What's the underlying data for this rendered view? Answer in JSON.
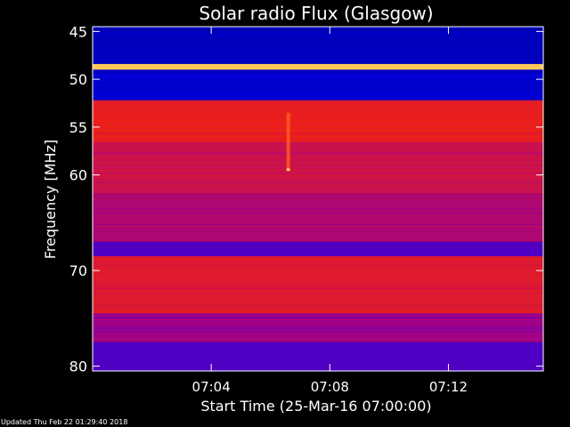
{
  "chart_data": {
    "type": "heatmap",
    "title": "Solar radio Flux (Glasgow)",
    "ylabel": "Frequency [MHz]",
    "xlabel": "Start Time (25-Mar-16 07:00:00)",
    "x_range_minutes": [
      0.0,
      15.2
    ],
    "x_ticks": [
      {
        "minute": 4,
        "label": "07:04"
      },
      {
        "minute": 8,
        "label": "07:08"
      },
      {
        "minute": 12,
        "label": "07:12"
      }
    ],
    "y_range_mhz": [
      44.5,
      80.5
    ],
    "y_ticks": [
      {
        "mhz": 45,
        "label": "45"
      },
      {
        "mhz": 50,
        "label": "50"
      },
      {
        "mhz": 55,
        "label": "55"
      },
      {
        "mhz": 60,
        "label": "60"
      },
      {
        "mhz": 70,
        "label": "70"
      },
      {
        "mhz": 80,
        "label": "80"
      }
    ],
    "colormap": "blue-red-yellow intensity",
    "bands": [
      {
        "from_mhz": 44.5,
        "to_mhz": 48.4,
        "level": 0.15
      },
      {
        "from_mhz": 48.4,
        "to_mhz": 49.0,
        "level": 0.95
      },
      {
        "from_mhz": 49.0,
        "to_mhz": 52.2,
        "level": 0.18
      },
      {
        "from_mhz": 52.2,
        "to_mhz": 53.2,
        "level": 0.7
      },
      {
        "from_mhz": 53.2,
        "to_mhz": 56.5,
        "level": 0.72
      },
      {
        "from_mhz": 56.5,
        "to_mhz": 62.0,
        "level": 0.6
      },
      {
        "from_mhz": 62.0,
        "to_mhz": 67.0,
        "level": 0.5
      },
      {
        "from_mhz": 67.0,
        "to_mhz": 68.5,
        "level": 0.35
      },
      {
        "from_mhz": 68.5,
        "to_mhz": 74.5,
        "level": 0.68
      },
      {
        "from_mhz": 74.5,
        "to_mhz": 77.5,
        "level": 0.45
      },
      {
        "from_mhz": 77.5,
        "to_mhz": 80.5,
        "level": 0.35
      }
    ],
    "features": [
      {
        "kind": "burst",
        "minute": 6.6,
        "from_mhz": 53.5,
        "to_mhz": 59.5
      }
    ]
  },
  "footer": {
    "updated": "Updated Thu Feb 22 01:29:40 2018"
  }
}
